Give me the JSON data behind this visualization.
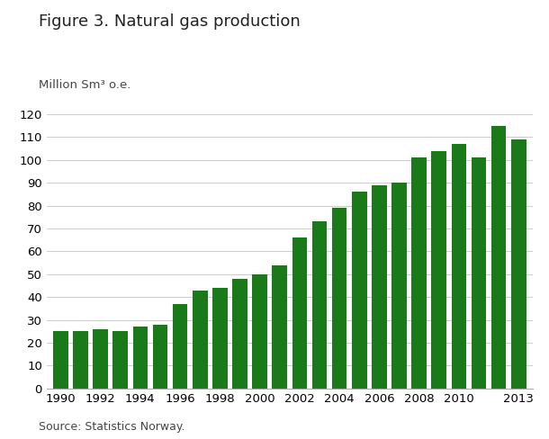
{
  "title": "Figure 3. Natural gas production",
  "ylabel": "Million Sm³ o.e.",
  "source": "Source: Statistics Norway.",
  "years": [
    1990,
    1991,
    1992,
    1993,
    1994,
    1995,
    1996,
    1997,
    1998,
    1999,
    2000,
    2001,
    2002,
    2003,
    2004,
    2005,
    2006,
    2007,
    2008,
    2009,
    2010,
    2011,
    2012,
    2013
  ],
  "values": [
    25,
    25,
    26,
    25,
    27,
    28,
    37,
    43,
    44,
    48,
    50,
    54,
    66,
    73,
    79,
    86,
    89,
    90,
    101,
    104,
    107,
    101,
    115,
    109
  ],
  "bar_color": "#1a7a1a",
  "ylim": [
    0,
    120
  ],
  "yticks": [
    0,
    10,
    20,
    30,
    40,
    50,
    60,
    70,
    80,
    90,
    100,
    110,
    120
  ],
  "xtick_show": [
    1990,
    1992,
    1994,
    1996,
    1998,
    2000,
    2002,
    2004,
    2006,
    2008,
    2010,
    2013
  ],
  "background_color": "#ffffff",
  "grid_color": "#cccccc",
  "title_fontsize": 13,
  "label_fontsize": 9.5,
  "tick_fontsize": 9.5,
  "source_fontsize": 9
}
